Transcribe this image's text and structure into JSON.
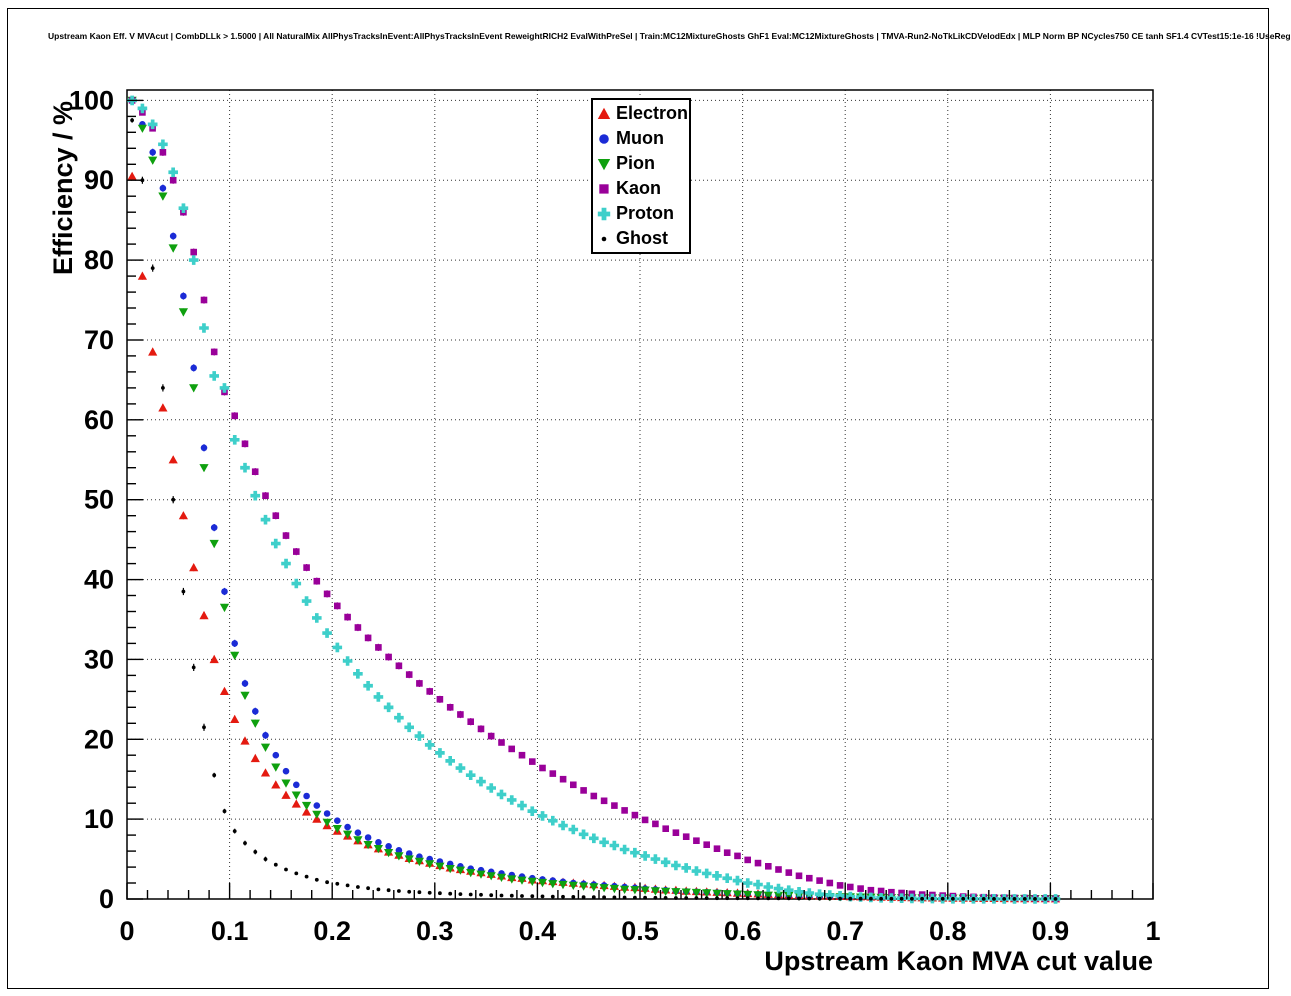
{
  "title": "Upstream Kaon Eff. V MVAcut | CombDLLk > 1.5000 | All NaturalMix AllPhysTracksInEvent:AllPhysTracksInEvent ReweightRICH2 EvalWithPreSel | Train:MC12MixtureGhosts GhF1 Eval:MC12MixtureGhosts | TMVA-Run2-NoTkLikCDVelodEdx | MLP Norm BP NCycles750 CE tanh SF1.4 CVTest15:1e-16 !UseReg",
  "chart_data": {
    "type": "scatter",
    "title": "",
    "xlabel": "Upstream Kaon MVA cut value",
    "ylabel": "Efficiency / %",
    "xlim": [
      0,
      1
    ],
    "ylim": [
      0,
      101.3
    ],
    "grid": "dotted-major",
    "legend_position": "top-center",
    "x_ticks": {
      "values": [
        0,
        0.1,
        0.2,
        0.3,
        0.4,
        0.5,
        0.6,
        0.7,
        0.8,
        0.9,
        1
      ],
      "labels": [
        "0",
        "0.1",
        "0.2",
        "0.3",
        "0.4",
        "0.5",
        "0.6",
        "0.7",
        "0.8",
        "0.9",
        "1"
      ],
      "minor_step": 0.02
    },
    "y_ticks": {
      "values": [
        0,
        10,
        20,
        30,
        40,
        50,
        60,
        70,
        80,
        90,
        100
      ],
      "labels": [
        "0",
        "10",
        "20",
        "30",
        "40",
        "50",
        "60",
        "70",
        "80",
        "90",
        "100"
      ],
      "minor_step": 2
    },
    "x_start": 0.005,
    "x_step": 0.01,
    "series": [
      {
        "name": "Electron",
        "marker": "triangle-up",
        "color": "#e41a10",
        "values": [
          90.5,
          78,
          68.5,
          61.5,
          55,
          48,
          41.5,
          35.5,
          30,
          26,
          22.5,
          19.8,
          17.6,
          15.8,
          14.3,
          13,
          11.9,
          10.9,
          10,
          9.2,
          8.5,
          7.9,
          7.3,
          6.8,
          6.3,
          5.9,
          5.5,
          5.1,
          4.8,
          4.5,
          4.2,
          3.9,
          3.7,
          3.5,
          3.3,
          3.1,
          2.9,
          2.7,
          2.6,
          2.4,
          2.3,
          2.2,
          2.1,
          2,
          1.9,
          1.8,
          1.7,
          1.6,
          1.5,
          1.45,
          1.35,
          1.25,
          1.15,
          1.1,
          1,
          0.95,
          0.9,
          0.85,
          0.8,
          0.75,
          0.7,
          0.65,
          0.6,
          0.55,
          0.5,
          0.47,
          0.43,
          0.4,
          0.37,
          0.34,
          0.31,
          0.28,
          0.26,
          0.24,
          0.22,
          0.2,
          0.18,
          0.16,
          0.15,
          0.13,
          0.12,
          0.11,
          0.1,
          0.09,
          0.08,
          0.07,
          0.06,
          0.06,
          0.05,
          0.05,
          0.04
        ]
      },
      {
        "name": "Muon",
        "marker": "circle",
        "color": "#1b2bd6",
        "values": [
          100,
          97,
          93.5,
          89,
          83,
          75.5,
          66.5,
          56.5,
          46.5,
          38.5,
          32,
          27,
          23.5,
          20.5,
          18,
          16,
          14.3,
          12.9,
          11.7,
          10.7,
          9.8,
          9,
          8.3,
          7.7,
          7.1,
          6.6,
          6.1,
          5.7,
          5.3,
          5,
          4.7,
          4.4,
          4.1,
          3.8,
          3.6,
          3.4,
          3.2,
          3,
          2.8,
          2.6,
          2.45,
          2.3,
          2.15,
          2,
          1.9,
          1.8,
          1.7,
          1.6,
          1.5,
          1.4,
          1.3,
          1.2,
          1.1,
          1,
          0.95,
          0.9,
          0.85,
          0.8,
          0.75,
          0.7,
          0.65,
          0.6,
          0.55,
          0.5,
          0.45,
          0.4,
          0.37,
          0.34,
          0.31,
          0.28,
          0.25,
          0.23,
          0.21,
          0.19,
          0.17,
          0.15,
          0.13,
          0.12,
          0.11,
          0.1,
          0.09,
          0.08,
          0.07,
          0.06,
          0.05,
          0.05,
          0.04,
          0.04,
          0.03,
          0.03,
          0.02
        ]
      },
      {
        "name": "Pion",
        "marker": "triangle-down",
        "color": "#0fa00f",
        "values": [
          100,
          96.5,
          92.5,
          88,
          81.5,
          73.5,
          64,
          54,
          44.5,
          36.5,
          30.5,
          25.5,
          22,
          19,
          16.5,
          14.5,
          13,
          11.7,
          10.6,
          9.6,
          8.8,
          8.1,
          7.4,
          6.8,
          6.3,
          5.8,
          5.4,
          5,
          4.7,
          4.4,
          4.1,
          3.8,
          3.6,
          3.3,
          3.1,
          2.9,
          2.7,
          2.5,
          2.35,
          2.2,
          2.05,
          1.9,
          1.8,
          1.7,
          1.6,
          1.5,
          1.4,
          1.3,
          1.2,
          1.15,
          1.1,
          1,
          0.95,
          0.9,
          0.85,
          0.8,
          0.75,
          0.7,
          0.65,
          0.6,
          0.55,
          0.5,
          0.47,
          0.44,
          0.41,
          0.38,
          0.35,
          0.32,
          0.29,
          0.27,
          0.25,
          0.23,
          0.21,
          0.19,
          0.17,
          0.16,
          0.14,
          0.13,
          0.12,
          0.11,
          0.1,
          0.09,
          0.08,
          0.07,
          0.06,
          0.06,
          0.05,
          0.05,
          0.04,
          0.04,
          0.03
        ]
      },
      {
        "name": "Kaon",
        "marker": "square",
        "color": "#990099",
        "values": [
          100,
          98.5,
          96.5,
          93.5,
          90,
          86,
          81,
          75,
          68.5,
          63.5,
          60.5,
          57,
          53.5,
          50.5,
          48,
          45.5,
          43.5,
          41.5,
          39.8,
          38.2,
          36.7,
          35.3,
          34,
          32.7,
          31.5,
          30.3,
          29.2,
          28.1,
          27,
          26,
          25,
          24,
          23.1,
          22.2,
          21.3,
          20.4,
          19.6,
          18.8,
          18,
          17.2,
          16.4,
          15.7,
          15,
          14.3,
          13.6,
          12.9,
          12.3,
          11.7,
          11.1,
          10.5,
          9.9,
          9.4,
          8.8,
          8.3,
          7.8,
          7.3,
          6.8,
          6.3,
          5.8,
          5.4,
          4.9,
          4.5,
          4.1,
          3.7,
          3.3,
          2.9,
          2.6,
          2.3,
          2,
          1.7,
          1.5,
          1.3,
          1.1,
          1,
          0.85,
          0.75,
          0.65,
          0.55,
          0.5,
          0.42,
          0.36,
          0.3,
          0.26,
          0.22,
          0.19,
          0.16,
          0.13,
          0.11,
          0.09,
          0.07,
          0.05
        ]
      },
      {
        "name": "Proton",
        "marker": "cross",
        "color": "#3ecfca",
        "values": [
          100,
          99,
          97,
          94.5,
          91,
          86.5,
          80,
          71.5,
          65.5,
          64,
          57.5,
          54,
          50.5,
          47.5,
          44.5,
          42,
          39.5,
          37.3,
          35.2,
          33.3,
          31.5,
          29.8,
          28.2,
          26.7,
          25.3,
          24,
          22.7,
          21.5,
          20.4,
          19.3,
          18.3,
          17.3,
          16.4,
          15.5,
          14.7,
          13.9,
          13.1,
          12.4,
          11.7,
          11,
          10.4,
          9.8,
          9.2,
          8.7,
          8.1,
          7.6,
          7.1,
          6.7,
          6.2,
          5.8,
          5.4,
          5,
          4.6,
          4.2,
          3.9,
          3.5,
          3.2,
          2.9,
          2.6,
          2.3,
          2,
          1.8,
          1.5,
          1.3,
          1.1,
          0.9,
          0.75,
          0.6,
          0.5,
          0.4,
          0.3,
          0.25,
          0.2,
          0.15,
          0.12,
          0.1,
          0.08,
          0.06,
          0.05,
          0.04,
          0.03,
          0.03,
          0.02,
          0.02,
          0.02,
          0.01,
          0.01,
          0.01,
          0.01,
          0.01,
          0.01
        ]
      },
      {
        "name": "Ghost",
        "marker": "dot",
        "color": "#000000",
        "values": [
          97.5,
          90,
          79,
          64,
          50,
          38.5,
          29,
          21.5,
          15.5,
          11,
          8.5,
          7,
          5.9,
          5,
          4.3,
          3.7,
          3.2,
          2.8,
          2.4,
          2.1,
          1.9,
          1.7,
          1.5,
          1.35,
          1.2,
          1.1,
          1,
          0.9,
          0.85,
          0.78,
          0.72,
          0.66,
          0.61,
          0.56,
          0.52,
          0.48,
          0.44,
          0.41,
          0.38,
          0.35,
          0.33,
          0.3,
          0.28,
          0.26,
          0.24,
          0.23,
          0.21,
          0.2,
          0.19,
          0.17,
          0.16,
          0.15,
          0.14,
          0.13,
          0.12,
          0.12,
          0.11,
          0.1,
          0.1,
          0.09,
          0.09,
          0.08,
          0.08,
          0.07,
          0.07,
          0.06,
          0.06,
          0.05,
          0.05,
          0.05,
          0.04,
          0.04,
          0.04,
          0.03,
          0.03,
          0.03,
          0.03,
          0.02,
          0.02,
          0.02,
          0.02,
          0.02,
          0.01,
          0.01,
          0.01,
          0.01,
          0.01,
          0.01,
          0.01,
          0.01,
          0.01
        ]
      }
    ]
  }
}
